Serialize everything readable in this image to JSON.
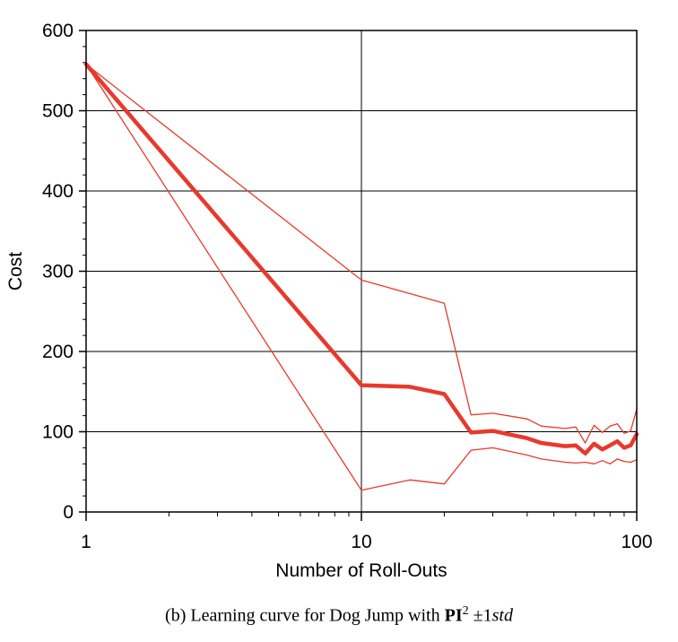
{
  "chart_data": {
    "type": "line",
    "xlabel": "Number of Roll-Outs",
    "ylabel": "Cost",
    "xscale": "log",
    "xlim": [
      1,
      100
    ],
    "ylim": [
      0,
      600
    ],
    "xticks": [
      1,
      10,
      100
    ],
    "yticks": [
      0,
      100,
      200,
      300,
      400,
      500,
      600
    ],
    "grid": true,
    "color": "#e8392c",
    "series": [
      {
        "role": "mean",
        "x": [
          1,
          10,
          15,
          20,
          25,
          30,
          40,
          45,
          55,
          60,
          65,
          70,
          75,
          80,
          85,
          90,
          95,
          100
        ],
        "y": [
          558,
          158,
          156,
          147,
          99,
          101,
          92,
          86,
          82,
          83,
          73,
          85,
          78,
          83,
          88,
          80,
          83,
          97
        ]
      },
      {
        "role": "upper",
        "x": [
          1,
          10,
          20,
          25,
          30,
          40,
          45,
          55,
          60,
          65,
          70,
          75,
          80,
          85,
          90,
          95,
          100
        ],
        "y": [
          558,
          289,
          260,
          121,
          123,
          116,
          107,
          104,
          106,
          86,
          108,
          99,
          107,
          110,
          98,
          101,
          128
        ]
      },
      {
        "role": "lower",
        "x": [
          1,
          10,
          15,
          20,
          25,
          30,
          40,
          45,
          55,
          60,
          65,
          70,
          75,
          80,
          85,
          90,
          95,
          100
        ],
        "y": [
          558,
          27,
          40,
          35,
          77,
          80,
          71,
          66,
          62,
          61,
          62,
          60,
          64,
          60,
          66,
          63,
          62,
          65
        ]
      }
    ]
  },
  "caption": {
    "prefix": "(b)  Learning curve for Dog Jump with ",
    "bold": "PI",
    "sup": "2",
    "pm": " ±1",
    "italic": "std"
  }
}
